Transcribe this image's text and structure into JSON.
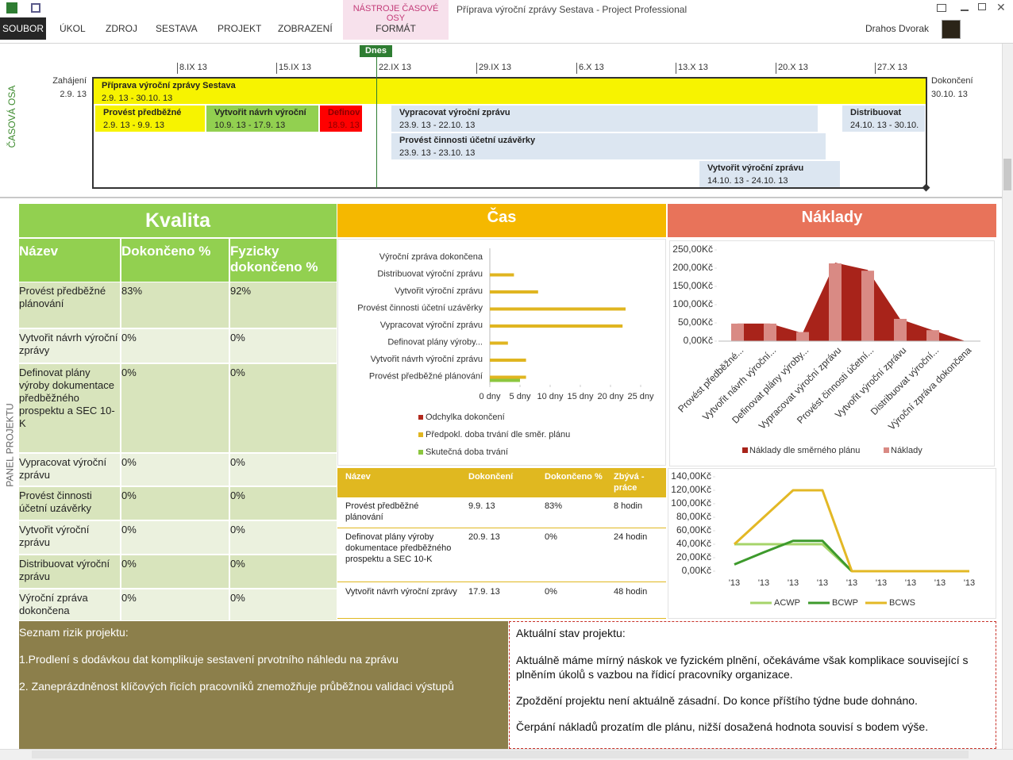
{
  "ribbon": {
    "tabs": [
      "SOUBOR",
      "ÚKOL",
      "ZDROJ",
      "SESTAVA",
      "PROJEKT",
      "ZOBRAZENÍ"
    ],
    "context_group": "NÁSTROJE ČASOVÉ OSY",
    "context_tab": "FORMÁT",
    "window_title": "Příprava výroční zprávy Sestava - Project Professional",
    "user": "Drahos Dvorak"
  },
  "timeline": {
    "label": "ČASOVÁ OSA",
    "today": "Dnes",
    "start": {
      "label": "Zahájení",
      "date": "2.9. 13"
    },
    "finish": {
      "label": "Dokončení",
      "date": "30.10. 13"
    },
    "dates": [
      "8.IX 13",
      "15.IX 13",
      "22.IX 13",
      "29.IX 13",
      "6.X 13",
      "13.X 13",
      "20.X 13",
      "27.X 13"
    ],
    "summary": {
      "name": "Příprava výroční zprávy Sestava",
      "dates": "2.9. 13 - 30.10. 13"
    },
    "tasks": [
      {
        "name": "Provést předběžné",
        "dates": "2.9. 13 - 9.9. 13"
      },
      {
        "name": "Vytvořit návrh výroční",
        "dates": "10.9. 13 - 17.9. 13"
      },
      {
        "name": "Definov",
        "dates": "18.9. 13"
      },
      {
        "name": "Vypracovat výroční zprávu",
        "dates": "23.9. 13 - 22.10. 13"
      },
      {
        "name": "Distribuovat",
        "dates": "24.10. 13 - 30.10."
      },
      {
        "name": "Provést činnosti účetní uzávěrky",
        "dates": "23.9. 13 - 23.10. 13"
      },
      {
        "name": "Vytvořit výroční zprávu",
        "dates": "14.10. 13 - 24.10. 13"
      }
    ]
  },
  "panel_label": "PANEL PROJEKTU",
  "quality": {
    "title": "Kvalita",
    "columns": [
      "Název",
      "Dokončeno %",
      "Fyzicky dokončeno %"
    ],
    "rows": [
      [
        "Provést předběžné plánování",
        "83%",
        "92%"
      ],
      [
        "Vytvořit návrh výroční zprávy",
        "0%",
        "0%"
      ],
      [
        "Definovat plány výroby dokumentace předběžného prospektu a SEC 10-K",
        "0%",
        "0%"
      ],
      [
        "Vypracovat výroční zprávu",
        "0%",
        "0%"
      ],
      [
        "Provést činnosti účetní uzávěrky",
        "0%",
        "0%"
      ],
      [
        "Vytvořit výroční zprávu",
        "0%",
        "0%"
      ],
      [
        "Distribuovat výroční zprávu",
        "0%",
        "0%"
      ],
      [
        "Výroční zpráva dokončena",
        "0%",
        "0%"
      ]
    ]
  },
  "time": {
    "title": "Čas",
    "chart": {
      "type": "bar",
      "categories": [
        "Výroční zpráva dokončena",
        "Distribuovat výroční zprávu",
        "Vytvořit výroční zprávu",
        "Provést činnosti účetní uzávěrky",
        "Vypracovat výroční zprávu",
        "Definovat plány výroby...",
        "Vytvořit návrh výroční zprávu",
        "Provést předběžné plánování"
      ],
      "series": [
        {
          "name": "Odchylka dokončení",
          "color": "#b22a1e",
          "values": [
            0,
            0,
            0,
            0,
            0,
            0,
            0,
            0
          ]
        },
        {
          "name": "Předpokl. doba trvání dle směr. plánu",
          "color": "#e0b520",
          "values": [
            0,
            4,
            8,
            22.5,
            22,
            3,
            6,
            6
          ]
        },
        {
          "name": "Skutečná doba trvání",
          "color": "#8cc63f",
          "values": [
            0,
            0,
            0,
            0,
            0,
            0,
            0,
            5
          ]
        }
      ],
      "xlim": [
        0,
        25
      ],
      "xticks": [
        {
          "value": 0,
          "label": "0 dny"
        },
        {
          "value": 5,
          "label": "5 dny"
        },
        {
          "value": 10,
          "label": "10 dny"
        },
        {
          "value": 15,
          "label": "15 dny"
        },
        {
          "value": 20,
          "label": "20 dny"
        },
        {
          "value": 25,
          "label": "25 dny"
        }
      ]
    },
    "table": {
      "columns": [
        "Název",
        "Dokončení",
        "Dokončeno %",
        "Zbývá - práce"
      ],
      "rows": [
        [
          "Provést předběžné plánování",
          "9.9. 13",
          "83%",
          "8 hodin"
        ],
        [
          "Definovat plány výroby dokumentace předběžného prospektu a SEC 10-K",
          "20.9. 13",
          "0%",
          "24 hodin"
        ],
        [
          "Vytvořit návrh výroční zprávy",
          "17.9. 13",
          "0%",
          "48 hodin"
        ]
      ]
    }
  },
  "costs": {
    "title": "Náklady",
    "chart": {
      "type": "bar",
      "categories": [
        "Provést předběžné...",
        "Vytvořit návrh výroční...",
        "Definovat plány výroby...",
        "Vypracovat výroční zprávu",
        "Provést činnosti účetní...",
        "Vytvořit výroční zprávu",
        "Distribuovat výroční...",
        "Výroční zpráva dokončena"
      ],
      "series": [
        {
          "name": "Náklady dle směrného plánu",
          "type": "area",
          "color": "#a8231a",
          "values": [
            48,
            48,
            22,
            215,
            195,
            60,
            30,
            0
          ]
        },
        {
          "name": "Náklady",
          "type": "bar",
          "color": "#d98a84",
          "values": [
            48,
            48,
            25,
            213,
            193,
            61,
            30,
            0
          ]
        }
      ],
      "ylim": [
        0,
        250
      ],
      "yticks": [
        {
          "value": 0,
          "label": "0,00Kč"
        },
        {
          "value": 50,
          "label": "50,00Kč"
        },
        {
          "value": 100,
          "label": "100,00Kč"
        },
        {
          "value": 150,
          "label": "150,00Kč"
        },
        {
          "value": 200,
          "label": "200,00Kč"
        },
        {
          "value": 250,
          "label": "250,00Kč"
        }
      ]
    },
    "evm_chart": {
      "type": "line",
      "categories": [
        "'13",
        "'13",
        "'13",
        "'13",
        "'13",
        "'13",
        "'13",
        "'13",
        "'13"
      ],
      "series": [
        {
          "name": "ACWP",
          "color": "#a6d46a",
          "values": [
            40,
            40,
            40,
            40,
            0,
            null,
            null,
            null,
            null
          ]
        },
        {
          "name": "BCWP",
          "color": "#3d9a2c",
          "values": [
            10,
            28,
            45,
            45,
            0,
            null,
            null,
            null,
            null
          ]
        },
        {
          "name": "BCWS",
          "color": "#e3b825",
          "values": [
            40,
            80,
            120,
            120,
            0,
            0,
            0,
            0,
            0
          ]
        }
      ],
      "ylim": [
        0,
        140
      ],
      "yticks": [
        {
          "value": 0,
          "label": "0,00Kč"
        },
        {
          "value": 20,
          "label": "20,00Kč"
        },
        {
          "value": 40,
          "label": "40,00Kč"
        },
        {
          "value": 60,
          "label": "60,00Kč"
        },
        {
          "value": 80,
          "label": "80,00Kč"
        },
        {
          "value": 100,
          "label": "100,00Kč"
        },
        {
          "value": 120,
          "label": "120,00Kč"
        },
        {
          "value": 140,
          "label": "140,00Kč"
        }
      ]
    }
  },
  "risks": {
    "title": "Seznam rizik projektu:",
    "items": [
      "1.Prodlení s dodávkou dat komplikuje sestavení prvotního náhledu na zprávu",
      "2. Zaneprázdněnost klíčových řicích pracovníků znemožňuje průběžnou validaci výstupů"
    ]
  },
  "status": {
    "title": "Aktuální stav projektu:",
    "paragraphs": [
      "Aktuálně máme mírný náskok ve fyzickém plnění, očekáváme však komplikace související s plněním úkolů s vazbou na řídicí pracovníky organizace.",
      "Zpoždění projektu není aktuálně zásadní. Do konce příštího týdne bude dohnáno.",
      "Čerpání nákladů prozatím dle plánu, nižší dosažená hodnota souvisí s bodem výše."
    ]
  }
}
